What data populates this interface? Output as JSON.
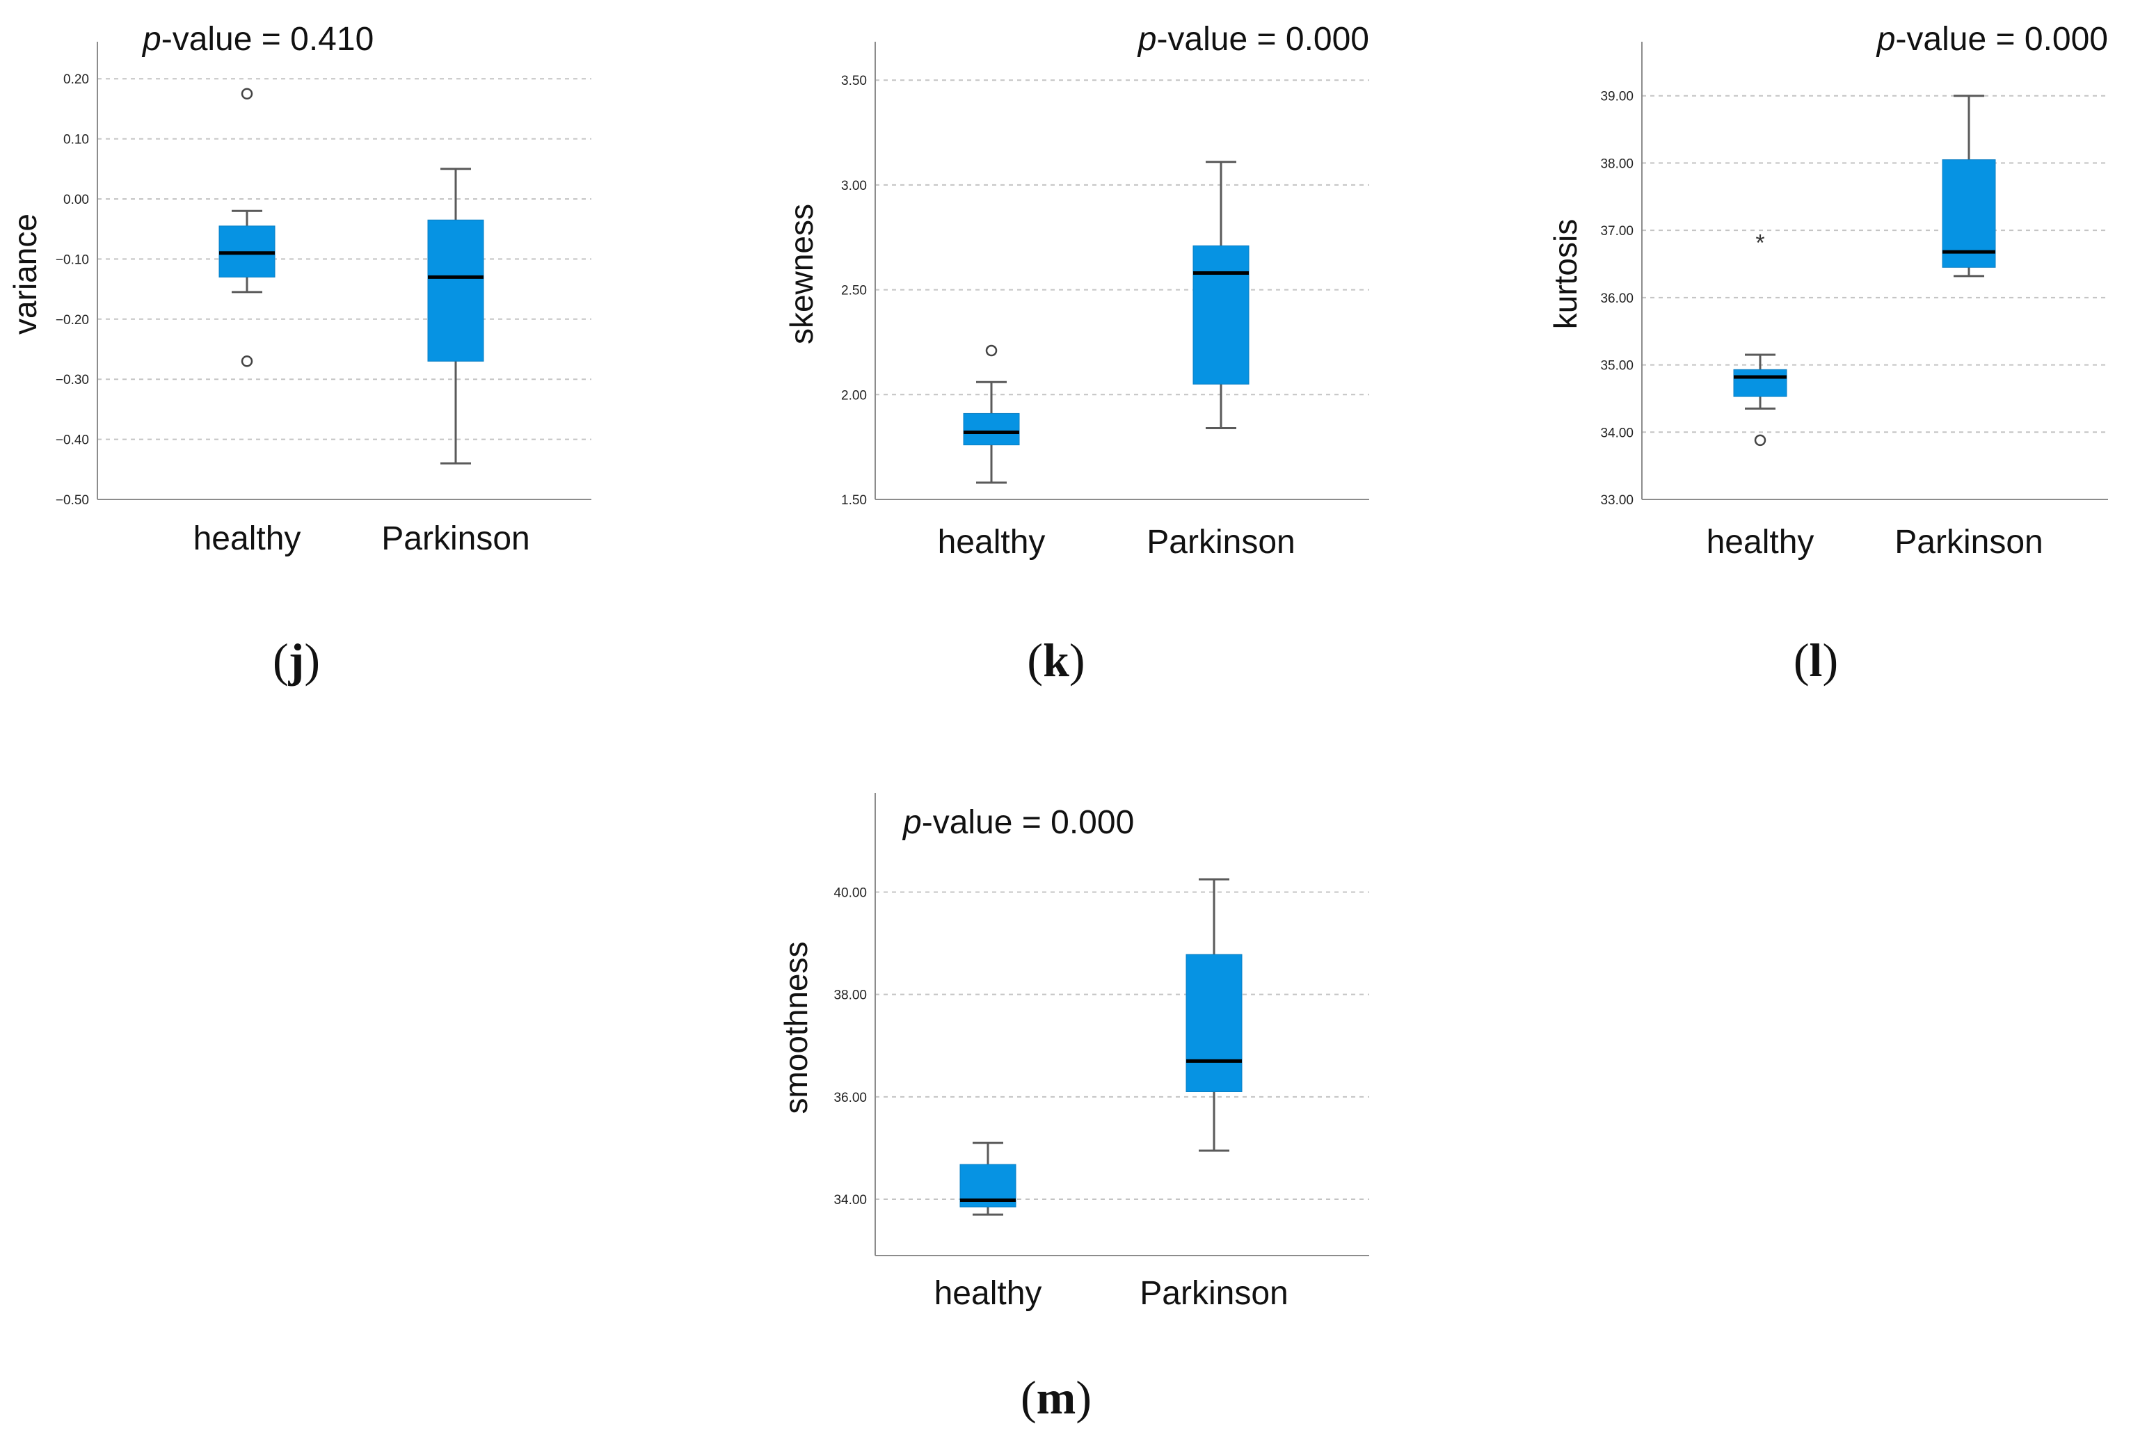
{
  "chart_data": [
    {
      "type": "box",
      "id": "j",
      "panel_label": "j",
      "ylabel": "variance",
      "p_value_symbol": "p",
      "p_value_text": "-value = 0.410",
      "categories": [
        "healthy",
        "Parkinson"
      ],
      "ylim": [
        -0.5,
        0.25
      ],
      "yticks": [
        0.2,
        0.1,
        0.0,
        -0.1,
        -0.2,
        -0.3,
        -0.4,
        -0.5
      ],
      "ytick_labels": [
        "0.20",
        "0.10",
        "0.00",
        "−0.10",
        "−0.20",
        "−0.30",
        "−0.40",
        "−0.50"
      ],
      "boxes": [
        {
          "name": "healthy",
          "whisker_low": -0.155,
          "q1": -0.13,
          "median": -0.09,
          "q3": -0.045,
          "whisker_high": -0.02,
          "outliers": [
            0.175,
            -0.27
          ],
          "extremes": []
        },
        {
          "name": "Parkinson",
          "whisker_low": -0.44,
          "q1": -0.27,
          "median": -0.13,
          "q3": -0.035,
          "whisker_high": 0.05,
          "outliers": [],
          "extremes": []
        }
      ]
    },
    {
      "type": "box",
      "id": "k",
      "panel_label": "k",
      "ylabel": "skewness",
      "p_value_symbol": "p",
      "p_value_text": "-value = 0.000",
      "categories": [
        "healthy",
        "Parkinson"
      ],
      "ylim": [
        1.5,
        3.65
      ],
      "yticks": [
        3.5,
        3.0,
        2.5,
        2.0,
        1.5
      ],
      "ytick_labels": [
        "3.50",
        "3.00",
        "2.50",
        "2.00",
        "1.50"
      ],
      "boxes": [
        {
          "name": "healthy",
          "whisker_low": 1.58,
          "q1": 1.76,
          "median": 1.82,
          "q3": 1.91,
          "whisker_high": 2.06,
          "outliers": [
            2.21
          ],
          "extremes": []
        },
        {
          "name": "Parkinson",
          "whisker_low": 1.84,
          "q1": 2.05,
          "median": 2.58,
          "q3": 2.71,
          "whisker_high": 3.11,
          "outliers": [],
          "extremes": []
        }
      ]
    },
    {
      "type": "box",
      "id": "l",
      "panel_label": "l",
      "ylabel": "kurtosis",
      "p_value_symbol": "p",
      "p_value_text": "-value = 0.000",
      "categories": [
        "healthy",
        "Parkinson"
      ],
      "ylim": [
        33.0,
        39.7
      ],
      "yticks": [
        39.0,
        38.0,
        37.0,
        36.0,
        35.0,
        34.0,
        33.0
      ],
      "ytick_labels": [
        "39.00",
        "38.00",
        "37.00",
        "36.00",
        "35.00",
        "34.00",
        "33.00"
      ],
      "boxes": [
        {
          "name": "healthy",
          "whisker_low": 34.35,
          "q1": 34.53,
          "median": 34.82,
          "q3": 34.93,
          "whisker_high": 35.15,
          "outliers": [
            33.88
          ],
          "extremes": [
            36.88
          ]
        },
        {
          "name": "Parkinson",
          "whisker_low": 36.32,
          "q1": 36.45,
          "median": 36.68,
          "q3": 38.05,
          "whisker_high": 39.0,
          "outliers": [],
          "extremes": []
        }
      ]
    },
    {
      "type": "box",
      "id": "m",
      "panel_label": "m",
      "ylabel": "smoothness",
      "p_value_symbol": "p",
      "p_value_text": "-value = 0.000",
      "categories": [
        "healthy",
        "Parkinson"
      ],
      "ylim": [
        32.9,
        41.8
      ],
      "yticks": [
        40.0,
        38.0,
        36.0,
        34.0
      ],
      "ytick_labels": [
        "40.00",
        "38.00",
        "36.00",
        "34.00"
      ],
      "boxes": [
        {
          "name": "healthy",
          "whisker_low": 33.7,
          "q1": 33.85,
          "median": 33.98,
          "q3": 34.68,
          "whisker_high": 35.1,
          "outliers": [],
          "extremes": []
        },
        {
          "name": "Parkinson",
          "whisker_low": 34.95,
          "q1": 36.1,
          "median": 36.7,
          "q3": 38.78,
          "whisker_high": 40.25,
          "outliers": [],
          "extremes": []
        }
      ]
    }
  ]
}
